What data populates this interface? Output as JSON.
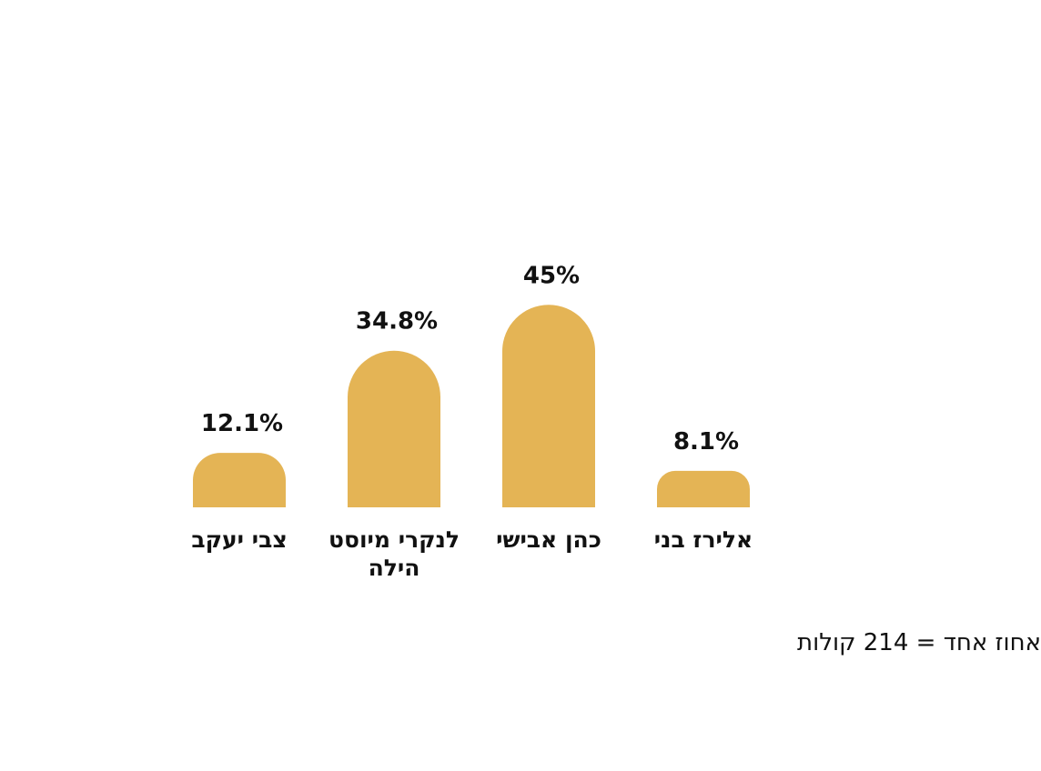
{
  "chart_data": {
    "type": "bar",
    "categories": [
      "צבי יעקב",
      "לנקרי מיוסט הילה",
      "כהן אבישי",
      "אלירז בני"
    ],
    "values": [
      12.1,
      34.8,
      45,
      8.1
    ],
    "value_labels": [
      "12.1%",
      "34.8%",
      "45%",
      "8.1%"
    ],
    "color": "#e4b455",
    "note": "אחוז אחד = 214 קולות"
  }
}
